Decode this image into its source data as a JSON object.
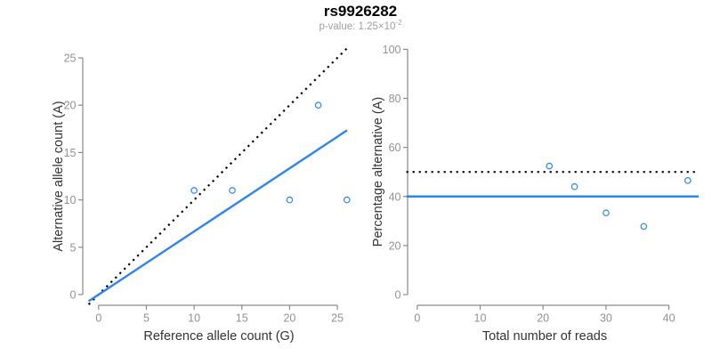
{
  "figure": {
    "title": "rs9926282",
    "p_value_text": "p-value: 1.25×10",
    "p_value_exponent": "-2"
  },
  "colors": {
    "accent_blue": "#2e86e8",
    "reference_black": "#000000",
    "axis_gray": "#8a8a8a",
    "tick_label_gray": "#919191",
    "axis_title_color": "#333333",
    "subtitle_gray": "#9e9e9e",
    "background": "#ffffff"
  },
  "chart_data": [
    {
      "type": "scatter",
      "xlabel": "Reference allele count (G)",
      "ylabel": "Alternative allele count (A)",
      "xlim": [
        0,
        26
      ],
      "ylim": [
        0,
        26
      ],
      "xticks": [
        0,
        5,
        10,
        15,
        20,
        25
      ],
      "yticks": [
        0,
        5,
        10,
        15,
        20,
        25
      ],
      "grid": false,
      "legend": null,
      "points": [
        [
          10,
          11
        ],
        [
          14,
          11
        ],
        [
          20,
          10
        ],
        [
          23,
          20
        ],
        [
          26,
          10
        ]
      ],
      "lines": [
        {
          "name": "identity-reference-line",
          "slope": 1,
          "intercept": 0,
          "style": "dotted",
          "color": "#000000"
        },
        {
          "name": "fitted-ratio-line",
          "slope": 0.667,
          "intercept": 0,
          "style": "solid",
          "color": "#2e86e8"
        }
      ]
    },
    {
      "type": "scatter",
      "xlabel": "Total number of reads",
      "ylabel": "Percentage alternative (A)",
      "xlim": [
        0,
        44
      ],
      "ylim": [
        0,
        100
      ],
      "xticks": [
        0,
        10,
        20,
        30,
        40
      ],
      "yticks": [
        0,
        20,
        40,
        60,
        80,
        100
      ],
      "grid": false,
      "legend": null,
      "points": [
        [
          21,
          52.4
        ],
        [
          25,
          44
        ],
        [
          30,
          33.3
        ],
        [
          36,
          27.8
        ],
        [
          43,
          46.5
        ]
      ],
      "lines": [
        {
          "name": "fifty-percent-reference-line",
          "slope": 0,
          "intercept": 50,
          "style": "dotted",
          "color": "#000000"
        },
        {
          "name": "mean-percentage-line",
          "slope": 0,
          "intercept": 40,
          "style": "solid",
          "color": "#2e86e8"
        }
      ]
    }
  ]
}
